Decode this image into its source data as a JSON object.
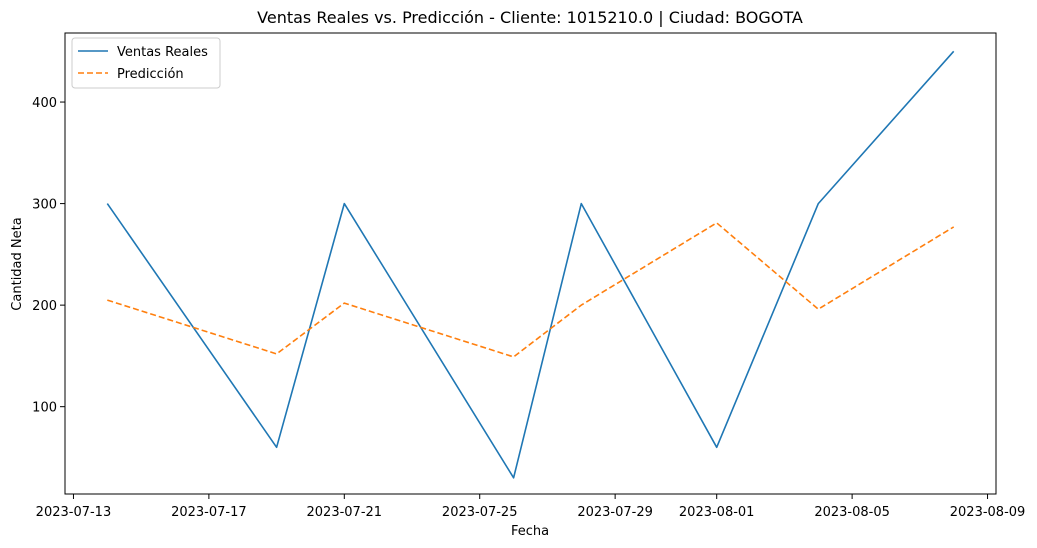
{
  "chart_data": {
    "type": "line",
    "title": "Ventas Reales vs. Predicción - Cliente: 1015210.0 | Ciudad: BOGOTA",
    "xlabel": "Fecha",
    "ylabel": "Cantidad Neta",
    "x": [
      "2023-07-14",
      "2023-07-19",
      "2023-07-21",
      "2023-07-26",
      "2023-07-28",
      "2023-08-01",
      "2023-08-04",
      "2023-08-08"
    ],
    "xlim": [
      "2023-07-12T18:00",
      "2023-08-09T06:00"
    ],
    "ylim": [
      14,
      468
    ],
    "x_ticks": [
      "2023-07-13",
      "2023-07-17",
      "2023-07-21",
      "2023-07-25",
      "2023-07-29",
      "2023-08-01",
      "2023-08-05",
      "2023-08-09"
    ],
    "y_ticks": [
      100,
      200,
      300,
      400
    ],
    "series": [
      {
        "name": "Ventas Reales",
        "values": [
          300,
          60,
          300,
          30,
          300,
          60,
          300,
          450
        ],
        "color": "#1f77b4",
        "style": "solid"
      },
      {
        "name": "Predicción",
        "values": [
          205,
          152,
          202,
          149,
          200,
          281,
          196,
          277
        ],
        "color": "#ff7f0e",
        "style": "dashed"
      }
    ],
    "legend_position": "top-left",
    "grid": false
  }
}
